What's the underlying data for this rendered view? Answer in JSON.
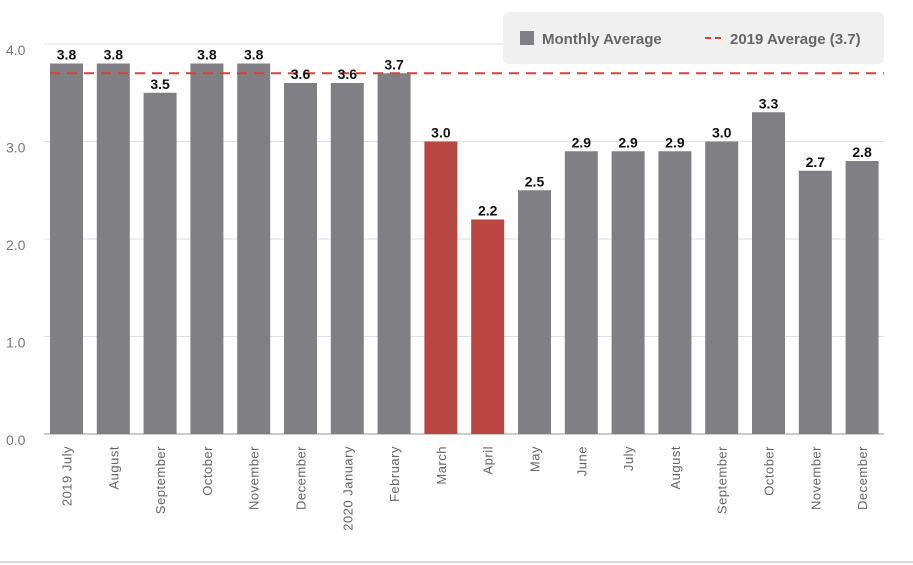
{
  "chart_data": {
    "type": "bar",
    "title": "",
    "xlabel": "",
    "ylabel": "",
    "ylim": [
      0,
      4
    ],
    "yticks": [
      "0.0",
      "1.0",
      "2.0",
      "3.0",
      "4.0"
    ],
    "grid": true,
    "categories": [
      "2019 July",
      "August",
      "September",
      "October",
      "November",
      "December",
      "2020 January",
      "February",
      "March",
      "April",
      "May",
      "June",
      "July",
      "August",
      "September",
      "October",
      "November",
      "December"
    ],
    "values": [
      3.8,
      3.8,
      3.5,
      3.8,
      3.8,
      3.6,
      3.6,
      3.7,
      3.0,
      2.2,
      2.5,
      2.9,
      2.9,
      2.9,
      3.0,
      3.3,
      2.7,
      2.8
    ],
    "data_labels": [
      "3.8",
      "3.8",
      "3.5",
      "3.8",
      "3.8",
      "3.6",
      "3.6",
      "3.7",
      "3.0",
      "2.2",
      "2.5",
      "2.9",
      "2.9",
      "2.9",
      "3.0",
      "3.3",
      "2.7",
      "2.8"
    ],
    "highlighted": [
      false,
      false,
      false,
      false,
      false,
      false,
      false,
      false,
      true,
      true,
      false,
      false,
      false,
      false,
      false,
      false,
      false,
      false
    ],
    "reference_line": {
      "label": "2019 Average (3.7)",
      "value": 3.7
    },
    "legend": {
      "placement": "top-right",
      "entries": [
        "Monthly Average",
        "2019 Average (3.7)"
      ]
    },
    "colors": {
      "bar": "#808084",
      "highlight": "#b94640",
      "reference": "#d9403a",
      "legend_bg": "#f0f0f0"
    }
  }
}
